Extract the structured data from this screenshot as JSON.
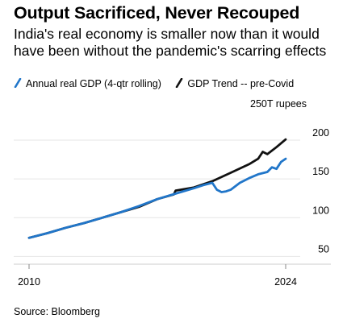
{
  "header": {
    "title": "Output Sacrificed, Never Recouped",
    "subtitle": "India's real economy is smaller now than it would have been without the pandemic's scarring effects"
  },
  "legend": {
    "items": [
      {
        "label": "Annual real GDP (4-qtr rolling)",
        "color": "#2176c9"
      },
      {
        "label": "GDP Trend -- pre-Covid",
        "color": "#111111"
      }
    ]
  },
  "unit_label": "250T rupees",
  "source": "Source: Bloomberg",
  "chart_data": {
    "type": "line",
    "title": "Output Sacrificed, Never Recouped",
    "subtitle": "India's real economy is smaller now than it would have been without the pandemic's scarring effects",
    "ylabel": "250T rupees",
    "xlim": [
      2010,
      2024.5
    ],
    "ylim": [
      40,
      225
    ],
    "yticks": [
      {
        "value": 50,
        "label": "50"
      },
      {
        "value": 100,
        "label": "100"
      },
      {
        "value": 150,
        "label": "150"
      },
      {
        "value": 200,
        "label": "200"
      }
    ],
    "xticks": [
      {
        "value": 2010,
        "label": "2010"
      },
      {
        "value": 2024,
        "label": "2024"
      }
    ],
    "grid": "horizontal",
    "series": [
      {
        "name": "Annual real GDP (4-qtr rolling)",
        "color": "#2176c9",
        "x": [
          2010.0,
          2011.0,
          2012.0,
          2013.0,
          2014.0,
          2015.0,
          2016.0,
          2017.0,
          2018.0,
          2019.0,
          2019.5,
          2020.0,
          2020.25,
          2020.5,
          2020.75,
          2021.0,
          2021.5,
          2022.0,
          2022.5,
          2023.0,
          2023.25,
          2023.5,
          2023.75,
          2024.0
        ],
        "y": [
          74,
          80,
          87,
          93,
          100,
          107,
          115,
          124,
          131,
          138,
          142,
          145,
          136,
          133,
          134,
          136,
          145,
          151,
          156,
          159,
          165,
          163,
          172,
          176
        ]
      },
      {
        "name": "GDP Trend -- pre-Covid",
        "color": "#111111",
        "x": [
          2010.0,
          2011.0,
          2012.0,
          2013.0,
          2014.0,
          2015.0,
          2016.0,
          2017.0,
          2017.9,
          2018.0,
          2019.0,
          2020.0,
          2021.0,
          2022.0,
          2022.5,
          2022.75,
          2023.0,
          2023.5,
          2024.0
        ],
        "y": [
          74,
          80,
          87,
          93,
          100,
          107,
          114,
          124,
          130,
          135,
          139,
          147,
          158,
          169,
          176,
          185,
          182,
          191,
          201
        ]
      }
    ]
  }
}
